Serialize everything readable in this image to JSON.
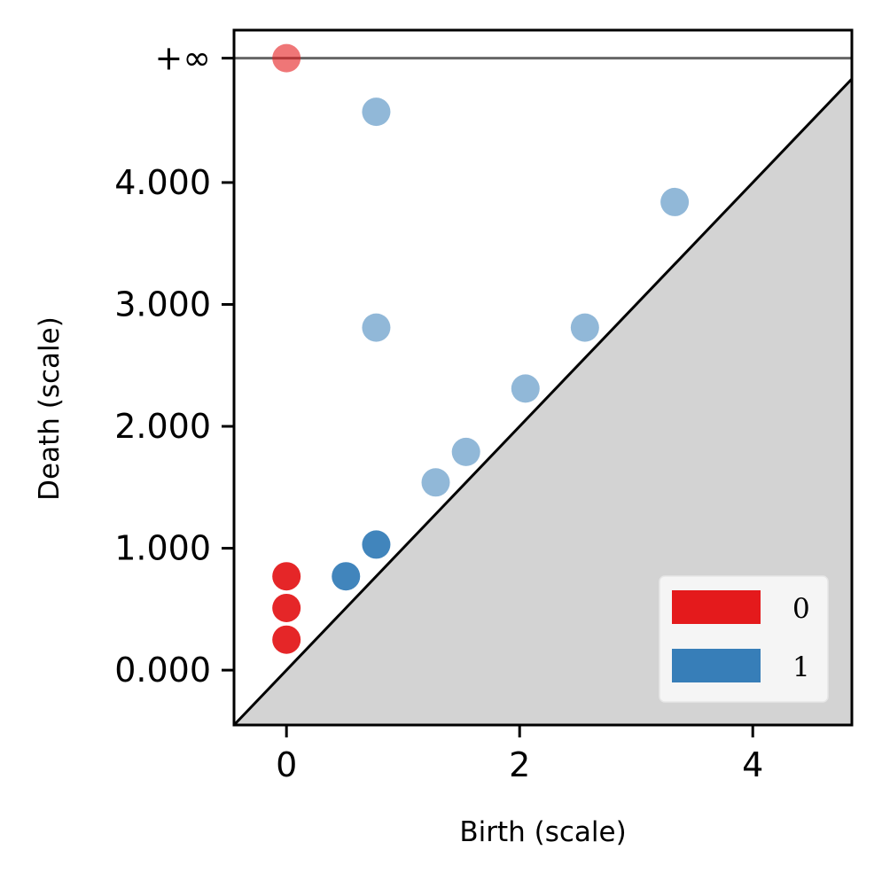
{
  "chart_data": {
    "type": "scatter",
    "title": "",
    "xlabel": "Birth (scale)",
    "ylabel": "Death (scale)",
    "xlim": [
      -0.45,
      4.85
    ],
    "ylim": [
      -0.45,
      5.25
    ],
    "x_ticks": [
      0,
      2,
      4
    ],
    "x_tick_labels": [
      "0",
      "2",
      "4"
    ],
    "y_ticks": [
      0,
      1,
      2,
      3,
      4
    ],
    "y_tick_labels": [
      "0.000",
      "1.000",
      "2.000",
      "3.000",
      "4.000"
    ],
    "infinity_value": 5.02,
    "infinity_label": "+∞",
    "diagonal": true,
    "legend_position": "lower-right",
    "legend": [
      {
        "label": "0",
        "color": "#e41a1c"
      },
      {
        "label": "1",
        "color": "#377eb8"
      }
    ],
    "series": [
      {
        "name": "0",
        "color": "#e41a1c",
        "points": [
          {
            "x": 0,
            "y": 0.25
          },
          {
            "x": 0,
            "y": 0.51
          },
          {
            "x": 0,
            "y": 0.77
          },
          {
            "x": 0,
            "y": "inf"
          }
        ]
      },
      {
        "name": "1",
        "color": "#377eb8",
        "points": [
          {
            "x": 0.51,
            "y": 0.77
          },
          {
            "x": 0.77,
            "y": 1.03
          },
          {
            "x": 0.77,
            "y": 4.58
          },
          {
            "x": 0.77,
            "y": 2.81
          },
          {
            "x": 1.28,
            "y": 1.54
          },
          {
            "x": 1.54,
            "y": 1.79
          },
          {
            "x": 2.05,
            "y": 2.31
          },
          {
            "x": 2.56,
            "y": 2.81
          },
          {
            "x": 3.33,
            "y": 3.84
          }
        ]
      }
    ]
  }
}
